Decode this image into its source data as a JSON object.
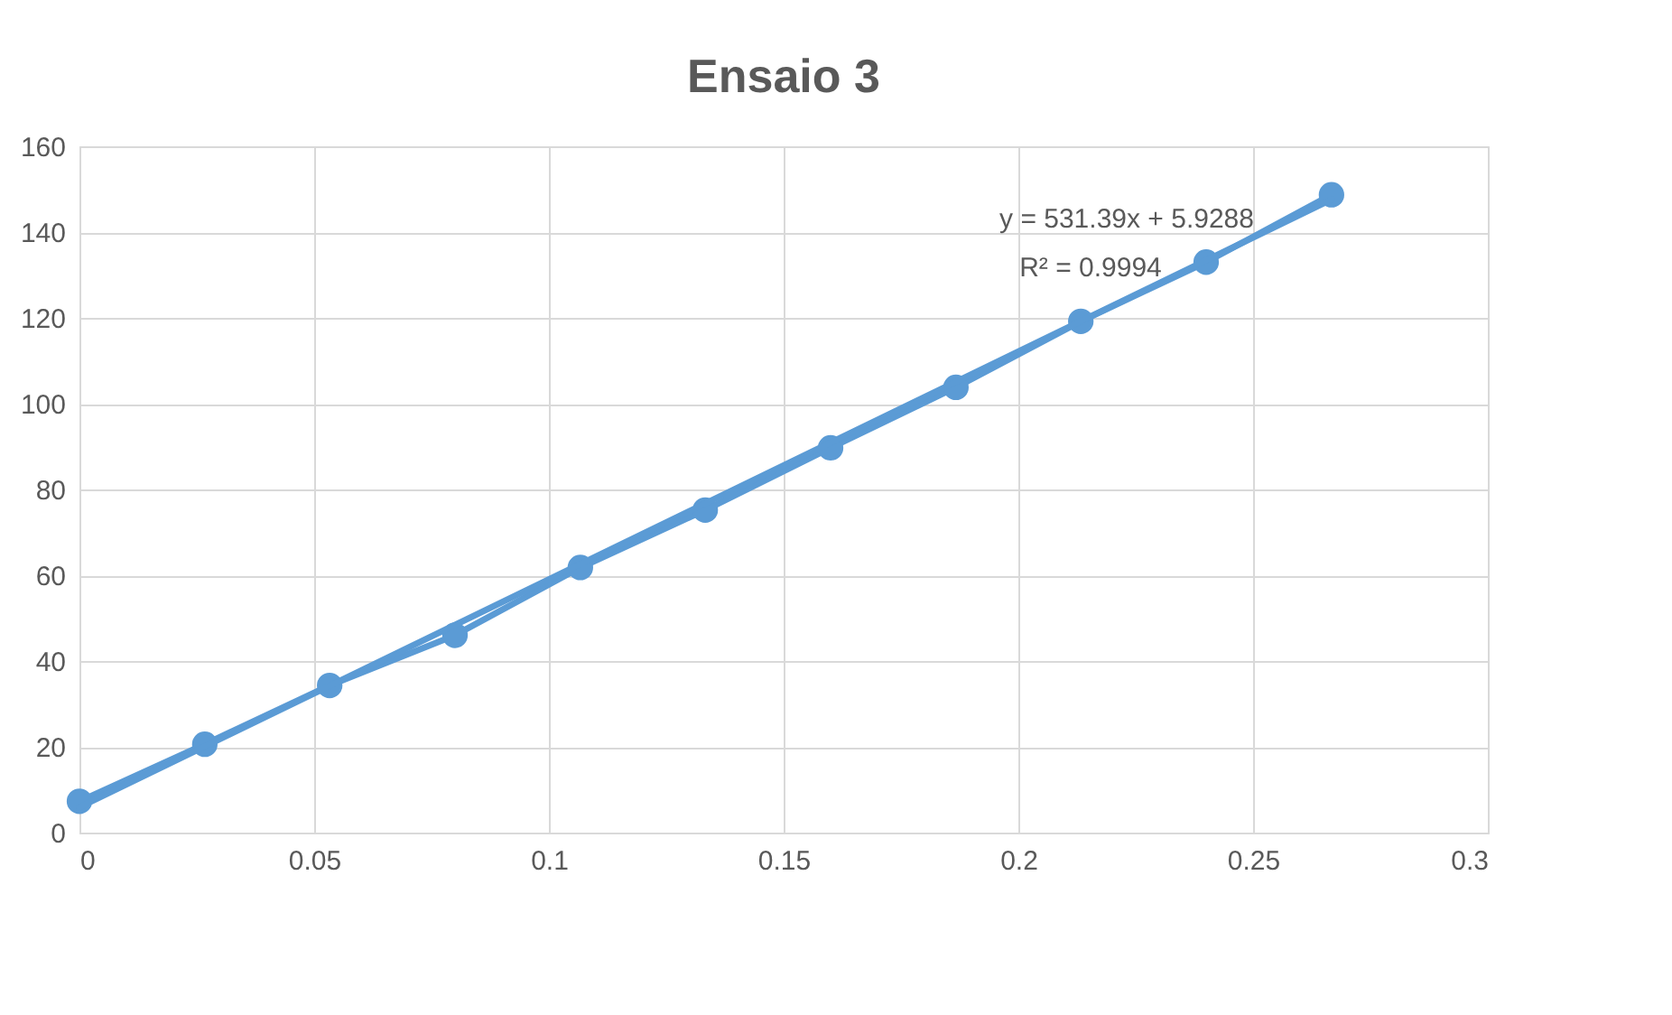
{
  "chart_data": {
    "type": "line",
    "title": "Ensaio 3",
    "x": [
      0,
      0.0267,
      0.0533,
      0.08,
      0.1067,
      0.1333,
      0.16,
      0.1867,
      0.2133,
      0.24,
      0.2667
    ],
    "series": [
      {
        "color": "#5b9bd5",
        "values": [
          7.3,
          20.6,
          34.3,
          46,
          61.8,
          75.2,
          89.7,
          103.8,
          119.2,
          133,
          148.7
        ],
        "marker": "circle"
      },
      {
        "type": "line",
        "color": "#5b9bd5",
        "x": [
          0,
          0.2667
        ],
        "values": [
          5.9,
          147.6
        ],
        "marker": "none"
      }
    ],
    "xlim": [
      0,
      0.3
    ],
    "xticks": [
      0,
      0.05,
      0.1,
      0.15,
      0.2,
      0.25,
      0.3
    ],
    "ylim": [
      0,
      160
    ],
    "yticks": [
      0,
      20,
      40,
      60,
      80,
      100,
      120,
      140,
      160
    ],
    "grid": true,
    "line_style": "solid",
    "annotations": [
      "y = 531.39x + 5.9288",
      "R² = 0.9994"
    ]
  }
}
